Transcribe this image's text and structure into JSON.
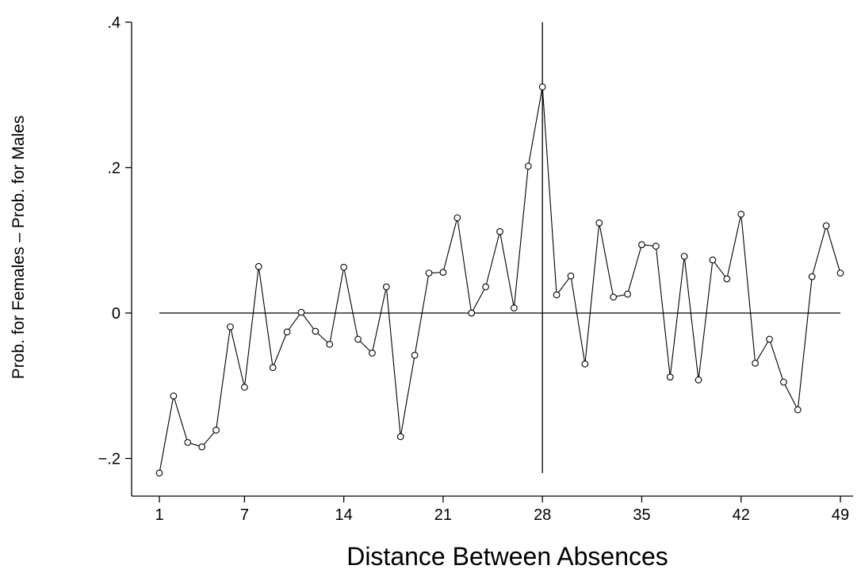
{
  "chart_data": {
    "type": "line",
    "xlabel": "Distance Between Absences",
    "ylabel": "Prob. for Females – Prob. for Males",
    "xlim": [
      0.0,
      50.0
    ],
    "ylim": [
      -0.235,
      0.4
    ],
    "xticks": [
      1,
      7,
      14,
      21,
      28,
      35,
      42,
      49
    ],
    "xtick_labels": [
      "1",
      "7",
      "14",
      "21",
      "28",
      "35",
      "42",
      "49"
    ],
    "yticks": [
      -0.2,
      0,
      0.2,
      0.4
    ],
    "ytick_labels": [
      "−.2",
      "0",
      ".2",
      ".4"
    ],
    "reference_lines": {
      "horizontal_y": 0,
      "vertical_x": 28,
      "vertical_y_range": [
        -0.22,
        0.4
      ]
    },
    "grid": false,
    "marker": "hollow-circle",
    "x": [
      1,
      2,
      3,
      4,
      5,
      6,
      7,
      8,
      9,
      10,
      11,
      12,
      13,
      14,
      15,
      16,
      17,
      18,
      19,
      20,
      21,
      22,
      23,
      24,
      25,
      26,
      27,
      28,
      29,
      30,
      31,
      32,
      33,
      34,
      35,
      36,
      37,
      38,
      39,
      40,
      41,
      42,
      43,
      44,
      45,
      46,
      47,
      48,
      49
    ],
    "values": [
      -0.22,
      -0.114,
      -0.178,
      -0.184,
      -0.161,
      -0.019,
      -0.102,
      0.064,
      -0.075,
      -0.026,
      0.001,
      -0.025,
      -0.043,
      0.063,
      -0.036,
      -0.055,
      0.036,
      -0.17,
      -0.058,
      0.055,
      0.056,
      0.131,
      0.0,
      0.036,
      0.112,
      0.007,
      0.202,
      0.311,
      0.025,
      0.051,
      -0.07,
      0.124,
      0.022,
      0.026,
      0.094,
      0.092,
      -0.088,
      0.078,
      -0.092,
      0.073,
      0.047,
      0.136,
      -0.069,
      -0.036,
      -0.095,
      -0.133,
      0.05,
      0.12,
      0.055
    ]
  }
}
